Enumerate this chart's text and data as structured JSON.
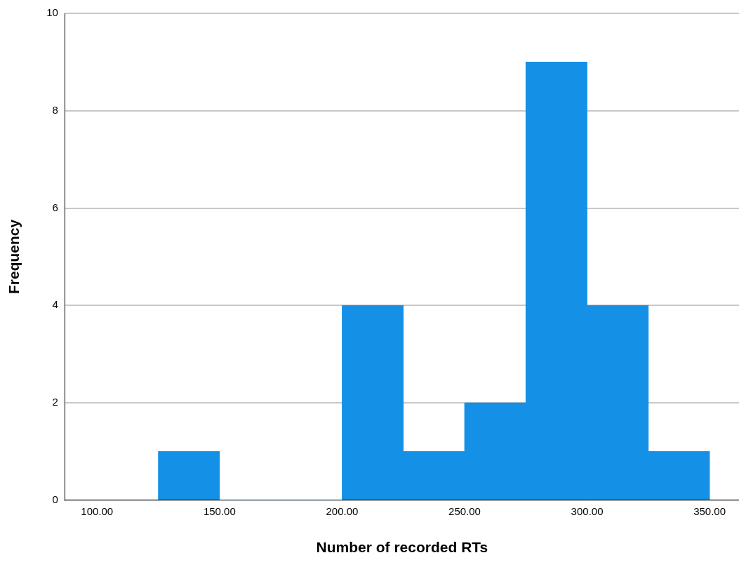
{
  "chart_data": {
    "type": "histogram",
    "xlabel": "Number of recorded RTs",
    "ylabel": "Frequency",
    "bins": [
      125,
      150,
      175,
      200,
      225,
      250,
      275,
      300,
      325,
      350
    ],
    "values": [
      1,
      0,
      0,
      4,
      1,
      2,
      9,
      4,
      1
    ],
    "color": "#1490e6",
    "xlim": [
      87,
      362
    ],
    "xticks": [
      {
        "value": 100,
        "label": "100.00"
      },
      {
        "value": 150,
        "label": "150.00"
      },
      {
        "value": 200,
        "label": "200.00"
      },
      {
        "value": 250,
        "label": "250.00"
      },
      {
        "value": 300,
        "label": "300.00"
      },
      {
        "value": 350,
        "label": "350.00"
      }
    ],
    "ylim": [
      0,
      10
    ],
    "yticks": [
      0,
      2,
      4,
      6,
      8,
      10
    ],
    "grid": "y",
    "legend": false
  }
}
